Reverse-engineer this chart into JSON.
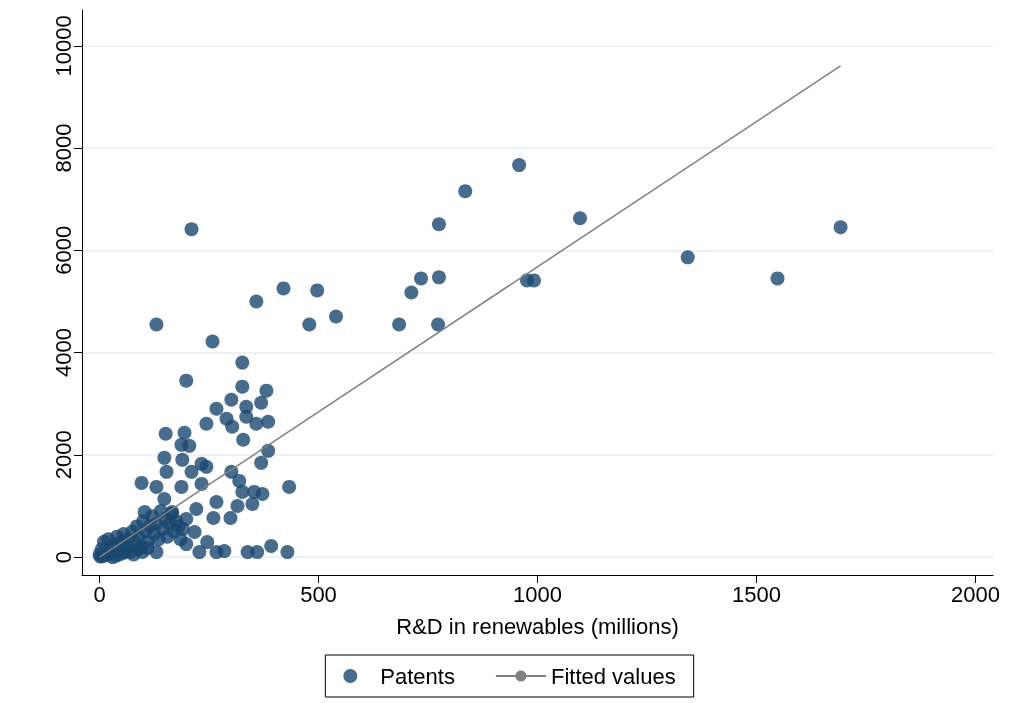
{
  "chart_data": {
    "type": "scatter",
    "xlabel": "R&D in renewables (millions)",
    "xlim": [
      -40,
      2040
    ],
    "ylim": [
      -350,
      10700
    ],
    "xticks": [
      0,
      500,
      1000,
      1500,
      2000
    ],
    "yticks": [
      0,
      2000,
      4000,
      6000,
      8000,
      10000
    ],
    "grid": "y",
    "legend": "bottom",
    "marker": "circle",
    "series": [
      {
        "name": "Patents",
        "color": "#1a476f",
        "x": [
          358,
          130,
          479,
          540,
          684,
          773,
          258,
          326,
          198,
          326,
          381,
          301,
          267,
          335,
          369,
          244,
          290,
          303,
          358,
          385,
          335,
          151,
          194,
          187,
          205,
          328,
          385,
          369,
          148,
          189,
          153,
          210,
          233,
          244,
          301,
          319,
          433,
          96,
          130,
          187,
          233,
          326,
          353,
          372,
          267,
          349,
          315,
          221,
          148,
          103,
          260,
          299,
          198,
          166,
          246,
          392,
          228,
          267,
          285,
          338,
          360,
          429,
          217,
          198,
          130,
          958,
          835,
          775,
          1097,
          1692,
          1343,
          1548,
          775,
          734,
          712,
          976,
          992,
          210,
          420,
          497,
          0,
          5,
          10,
          20,
          25,
          30,
          35,
          40,
          50,
          55,
          60,
          65,
          70,
          75,
          80,
          85,
          90,
          95,
          100,
          105,
          110,
          115,
          120,
          125,
          130,
          135,
          140,
          145,
          150,
          155,
          160,
          165,
          170,
          175,
          180,
          185,
          190,
          2,
          8,
          18,
          38,
          48,
          58,
          78,
          88,
          98,
          110
        ],
        "values": [
          5000,
          4550,
          4550,
          4706,
          4550,
          4550,
          4216,
          3804,
          3451,
          3333,
          3255,
          3078,
          2902,
          2941,
          3020,
          2608,
          2706,
          2549,
          2608,
          2647,
          2745,
          2412,
          2431,
          2196,
          2176,
          2294,
          2078,
          1843,
          1941,
          1902,
          1667,
          1667,
          1824,
          1765,
          1667,
          1490,
          1373,
          1451,
          1373,
          1373,
          1431,
          1275,
          1275,
          1235,
          1078,
          1039,
          1000,
          941,
          1137,
          882,
          765,
          765,
          745,
          882,
          294,
          216,
          98,
          98,
          118,
          98,
          98,
          98,
          490,
          255,
          98,
          7667,
          7157,
          6510,
          6627,
          6451,
          5863,
          5451,
          5471,
          5451,
          5176,
          5412,
          5412,
          6412,
          5255,
          5216,
          50,
          150,
          300,
          350,
          200,
          0,
          250,
          400,
          300,
          450,
          200,
          350,
          100,
          500,
          300,
          600,
          400,
          200,
          700,
          500,
          300,
          600,
          800,
          450,
          650,
          350,
          900,
          550,
          750,
          400,
          650,
          850,
          500,
          700,
          600,
          350,
          550,
          10,
          20,
          40,
          30,
          60,
          90,
          50,
          150,
          100,
          180
        ]
      },
      {
        "name": "Fitted values",
        "type": "line",
        "color": "#808080",
        "marker": "none",
        "x": [
          0,
          1692
        ],
        "values": [
          0,
          9608
        ]
      }
    ]
  }
}
